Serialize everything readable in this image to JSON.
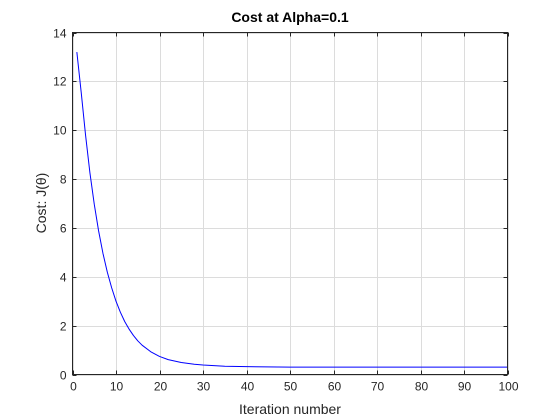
{
  "chart_data": {
    "type": "line",
    "title": "Cost at Alpha=0.1",
    "xlabel": "Iteration number",
    "ylabel": "Cost: J(θ)",
    "xlim": [
      0,
      100
    ],
    "ylim": [
      0,
      14
    ],
    "xticks": [
      0,
      10,
      20,
      30,
      40,
      50,
      60,
      70,
      80,
      90,
      100
    ],
    "yticks": [
      0,
      2,
      4,
      6,
      8,
      10,
      12,
      14
    ],
    "grid": true,
    "colors": {
      "line": "#0000ff"
    },
    "series": [
      {
        "x": [
          1,
          2,
          3,
          4,
          5,
          6,
          7,
          8,
          9,
          10,
          11,
          12,
          13,
          14,
          15,
          16,
          18,
          20,
          22,
          25,
          28,
          30,
          35,
          40,
          50,
          60,
          70,
          80,
          90,
          100
        ],
        "values": [
          13.2,
          11.55,
          9.8,
          8.26,
          6.97,
          5.88,
          4.96,
          4.19,
          3.55,
          3.0,
          2.55,
          2.17,
          1.86,
          1.6,
          1.38,
          1.2,
          0.93,
          0.74,
          0.61,
          0.49,
          0.42,
          0.39,
          0.34,
          0.32,
          0.3,
          0.3,
          0.3,
          0.3,
          0.3,
          0.3
        ]
      }
    ]
  }
}
